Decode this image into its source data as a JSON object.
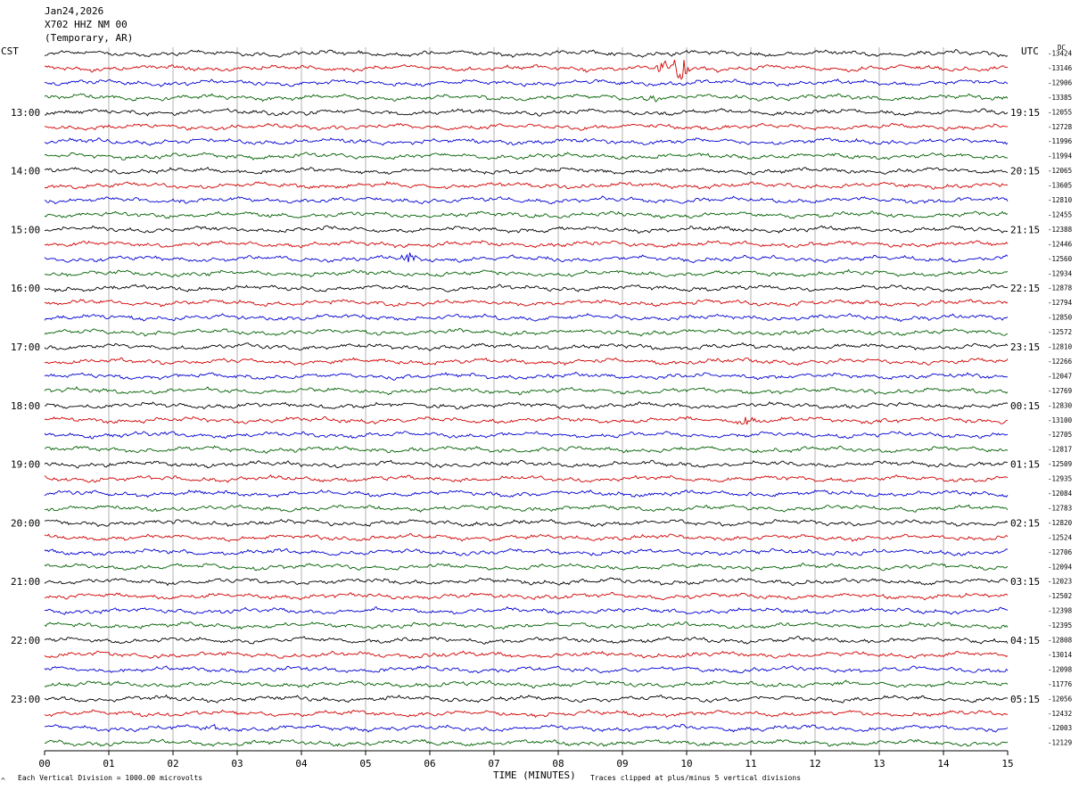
{
  "header": {
    "date": "Jan24,2026",
    "station": "X702 HHZ NM 00",
    "location": "(Temporary, AR)"
  },
  "left_zone": "CST",
  "right_zone": "UTC",
  "dc_label": "DC",
  "left_times": [
    "13:00",
    "14:00",
    "15:00",
    "16:00",
    "17:00",
    "18:00",
    "19:00",
    "20:00",
    "21:00",
    "22:00",
    "23:00"
  ],
  "right_times": [
    "19:15",
    "20:15",
    "21:15",
    "22:15",
    "23:15",
    "00:15",
    "01:15",
    "02:15",
    "03:15",
    "04:15",
    "05:15"
  ],
  "footer": {
    "scale_note": "Each Vertical Division = 1000.00 microvolts",
    "clip_note": "Traces clipped at plus/minus 5 vertical divisions",
    "axis_title": "TIME (MINUTES)"
  },
  "colors": {
    "trace_cycle": [
      "#000000",
      "#d00000",
      "#0000d0",
      "#006000"
    ],
    "grid": "#808080"
  },
  "chart_data": {
    "type": "line",
    "title": "X702 HHZ NM 00",
    "xlabel": "TIME (MINUTES)",
    "xlim": [
      0,
      15
    ],
    "x_ticks": [
      "00",
      "01",
      "02",
      "03",
      "04",
      "05",
      "06",
      "07",
      "08",
      "09",
      "10",
      "11",
      "12",
      "13",
      "14",
      "15"
    ],
    "traces_per_hour": 4,
    "trace_count": 48,
    "dc_offsets": [
      "-13424",
      "-13146",
      "-12906",
      "-13385",
      "-12055",
      "-12728",
      "-11996",
      "-11994",
      "-12065",
      "-13605",
      "-12810",
      "-12455",
      "-12388",
      "-12446",
      "-12560",
      "-12934",
      "-12878",
      "-12794",
      "-12850",
      "-12572",
      "-12810",
      "-12266",
      "-12047",
      "-12769",
      "-12830",
      "-13100",
      "-12705",
      "-12817",
      "-12509",
      "-12935",
      "-12084",
      "-12783",
      "-12820",
      "-12524",
      "-12706",
      "-12094",
      "-12023",
      "-12502",
      "-12398",
      "-12395",
      "-12808",
      "-13014",
      "-12098",
      "-11776",
      "-12056",
      "-12432",
      "-12003",
      "-12129"
    ],
    "events": [
      {
        "trace": 1,
        "minute": 9.6,
        "amplitude": 12
      },
      {
        "trace": 1,
        "minute": 9.9,
        "amplitude": 16
      },
      {
        "trace": 3,
        "minute": 9.45,
        "amplitude": 5
      },
      {
        "trace": 14,
        "minute": 5.65,
        "amplitude": 7
      },
      {
        "trace": 25,
        "minute": 10.95,
        "amplitude": 7
      },
      {
        "trace": 46,
        "minute": 2.65,
        "amplitude": 4
      }
    ]
  }
}
